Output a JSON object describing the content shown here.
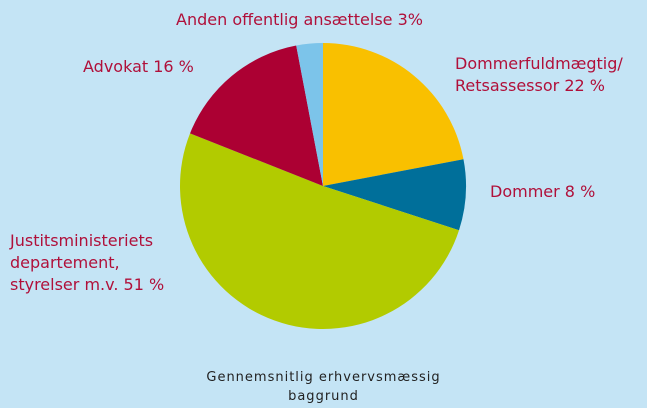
{
  "chart_data": {
    "type": "pie",
    "title": "Gennemsnitlig erhvervsmæssig\nbaggrund",
    "categories": [
      "Dommerfuldmægtig/\nRetsassessor",
      "Dommer",
      "Justitsministeriets\ndepartement,\nstyrelser m.v.",
      "Advokat",
      "Anden offentlig ansættelse"
    ],
    "values": [
      22,
      8,
      51,
      16,
      3
    ],
    "value_labels": [
      "22 %",
      "8 %",
      "51 %",
      "16 %",
      "3%"
    ],
    "colors": [
      "#f9c000",
      "#006f9a",
      "#b2cb00",
      "#ac0033",
      "#7cc4ea"
    ]
  }
}
